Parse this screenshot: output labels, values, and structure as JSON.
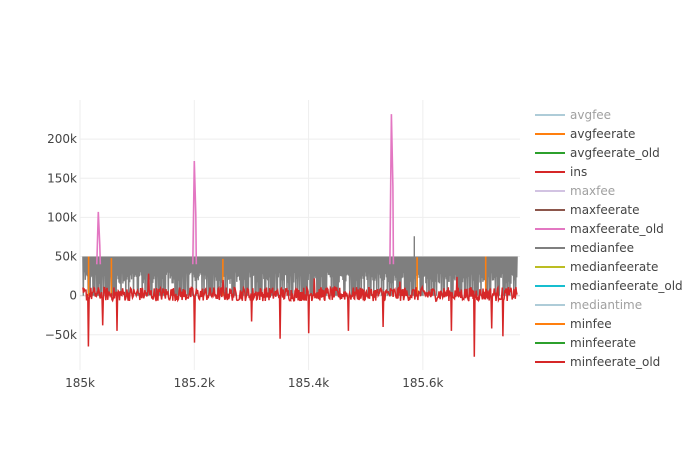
{
  "chart_data": {
    "type": "line",
    "title": "",
    "xlabel": "",
    "ylabel": "",
    "xlim": [
      185000,
      185770
    ],
    "ylim": [
      -95000,
      250000
    ],
    "grid": true,
    "legend_position": "right",
    "x_ticks": [
      185000,
      185200,
      185400,
      185600
    ],
    "x_tick_labels": [
      "185k",
      "185.2k",
      "185.4k",
      "185.6k"
    ],
    "y_ticks": [
      -50000,
      0,
      50000,
      100000,
      150000,
      200000
    ],
    "y_tick_labels": [
      "−50k",
      "0",
      "50k",
      "100k",
      "150k",
      "200k"
    ],
    "series": [
      {
        "name": "avgfee",
        "color": "#9ac0cf",
        "visible": false
      },
      {
        "name": "avgfeerate",
        "color": "#ff7f0e",
        "visible": true,
        "spikes": [
          [
            185015,
            50000
          ],
          [
            185055,
            48000
          ],
          [
            185250,
            47000
          ],
          [
            185590,
            49000
          ],
          [
            185710,
            50000
          ]
        ]
      },
      {
        "name": "avgfeerate_old",
        "color": "#2ca02c",
        "visible": true
      },
      {
        "name": "ins",
        "color": "#d62728",
        "visible": true,
        "spikes": [
          [
            185015,
            -65000
          ],
          [
            185040,
            -38000
          ],
          [
            185065,
            -45000
          ],
          [
            185120,
            -28000
          ],
          [
            185200,
            -60000
          ],
          [
            185300,
            -33000
          ],
          [
            185350,
            -55000
          ],
          [
            185400,
            -48000
          ],
          [
            185470,
            -45000
          ],
          [
            185530,
            -40000
          ],
          [
            185650,
            -45000
          ],
          [
            185690,
            -78000
          ],
          [
            185720,
            -42000
          ],
          [
            185740,
            -52000
          ],
          [
            185120,
            28000
          ],
          [
            185250,
            20000
          ],
          [
            185410,
            22000
          ],
          [
            185560,
            18000
          ],
          [
            185660,
            24000
          ]
        ]
      },
      {
        "name": "maxfee",
        "color": "#c8b5db",
        "visible": false
      },
      {
        "name": "maxfeerate",
        "color": "#8c564b",
        "visible": true
      },
      {
        "name": "maxfeerate_old",
        "color": "#e377c2",
        "visible": true,
        "spikes": [
          [
            185032,
            107000
          ],
          [
            185200,
            172000
          ],
          [
            185545,
            232000
          ]
        ]
      },
      {
        "name": "medianfee",
        "color": "#7f7f7f",
        "visible": true,
        "level": 50000,
        "spikes": [
          [
            185585,
            76000
          ]
        ]
      },
      {
        "name": "medianfeerate",
        "color": "#bcbd22",
        "visible": true
      },
      {
        "name": "medianfeerate_old",
        "color": "#17becf",
        "visible": true
      },
      {
        "name": "mediantime",
        "color": "#9ac0cf",
        "visible": false
      },
      {
        "name": "minfee",
        "color": "#ff7f0e",
        "visible": true
      },
      {
        "name": "minfeerate",
        "color": "#2ca02c",
        "visible": true
      },
      {
        "name": "minfeerate_old",
        "color": "#d62728",
        "visible": true
      }
    ]
  }
}
